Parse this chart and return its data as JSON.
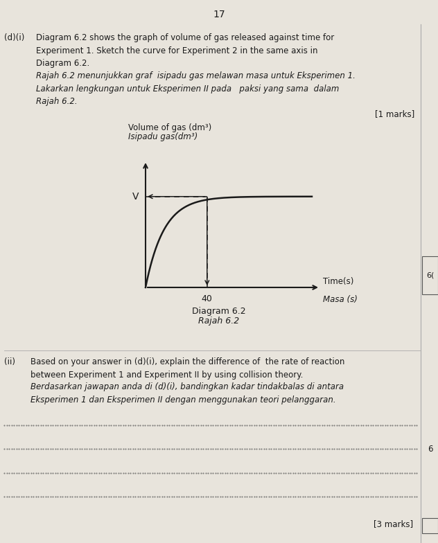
{
  "page_number": "17",
  "bg_color": "#e8e4dc",
  "text_color": "#1a1a1a",
  "section_di_label": "(d)(i)",
  "section_di_text_en": "Diagram 6.2 shows the graph of volume of gas released against time for\nExperiment 1. Sketch the curve for Experiment 2 in the same axis in\nDiagram 6.2.",
  "section_di_text_ms": "Rajah 6.2 menunjukkan graf  isipadu gas melawan masa untuk Eksperimen 1.\nLakarkan lengkungan untuk Eksperimen II pada   paksi yang sama  dalam\nRajah 6.2.",
  "marks_di": "[1 marks]",
  "ylabel_en": "Volume of gas (dm³)",
  "ylabel_ms": "Isipadu gas(dm³)",
  "xlabel_en": "Time(s)",
  "xlabel_ms": "Masa (s)",
  "x_tick": "40",
  "diagram_label": "Diagram 6.2",
  "diagram_label_ms": "Rajah 6.2",
  "section_dii_label": "(ii)",
  "section_dii_text_en": "Based on your answer in (d)(i), explain the difference of  the rate of reaction\nbetween Experiment 1 and Experiment II by using collision theory.",
  "section_dii_text_ms": "Berdasarkan jawapan anda di (d)(i), bandingkan kadar tindakbalas di antara\nEksperimen 1 dan Eksperimen II dengan menggunakan teori pelanggaran.",
  "marks_dii": "[3 marks]",
  "right_label_di": "6(",
  "right_label_dii": "6"
}
